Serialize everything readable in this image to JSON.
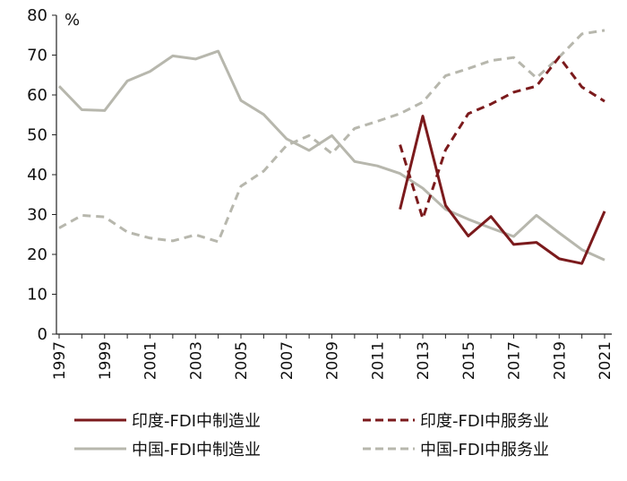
{
  "chart_data": {
    "type": "line",
    "unit_label": "%",
    "ylim": [
      0,
      80
    ],
    "y_ticks": [
      "0",
      "10",
      "20",
      "30",
      "40",
      "50",
      "60",
      "70",
      "80"
    ],
    "x_range": [
      1997,
      2021
    ],
    "x_tick_labels": [
      "1997",
      "1999",
      "2001",
      "2003",
      "2005",
      "2007",
      "2009",
      "2011",
      "2013",
      "2015",
      "2017",
      "2019",
      "2021"
    ],
    "series": [
      {
        "name": "印度-FDI中制造业",
        "color": "#7b1a1c",
        "dash": "solid",
        "x": [
          2012,
          2013,
          2014,
          2015,
          2016,
          2017,
          2018,
          2019,
          2020,
          2021
        ],
        "values": [
          31.3,
          54.7,
          32.3,
          24.6,
          29.5,
          22.5,
          23.0,
          18.9,
          17.7,
          30.8
        ]
      },
      {
        "name": "印度-FDI中服务业",
        "color": "#7b1a1c",
        "dash": "dashed",
        "x": [
          2012,
          2013,
          2014,
          2015,
          2016,
          2017,
          2018,
          2019,
          2020,
          2021
        ],
        "values": [
          47.5,
          29.0,
          46.2,
          55.3,
          57.7,
          60.7,
          62.2,
          69.5,
          62.0,
          58.4
        ]
      },
      {
        "name": "中国-FDI中制造业",
        "color": "#b7b7ad",
        "dash": "solid",
        "x": [
          1997,
          1998,
          1999,
          2000,
          2001,
          2002,
          2003,
          2004,
          2005,
          2006,
          2007,
          2008,
          2009,
          2010,
          2011,
          2012,
          2013,
          2014,
          2015,
          2016,
          2017,
          2018,
          2019,
          2020,
          2021
        ],
        "values": [
          62.2,
          56.3,
          56.1,
          63.5,
          65.9,
          69.8,
          69.0,
          71.0,
          58.6,
          55.1,
          49.0,
          46.1,
          49.8,
          43.3,
          42.2,
          40.3,
          36.6,
          31.3,
          28.8,
          26.6,
          24.5,
          29.8,
          25.4,
          21.2,
          18.6
        ]
      },
      {
        "name": "中国-FDI中服务业",
        "color": "#b7b7ad",
        "dash": "dashed",
        "x": [
          1997,
          1998,
          1999,
          2000,
          2001,
          2002,
          2003,
          2004,
          2005,
          2006,
          2007,
          2008,
          2009,
          2010,
          2011,
          2012,
          2013,
          2014,
          2015,
          2016,
          2017,
          2018,
          2019,
          2020,
          2021
        ],
        "values": [
          26.6,
          29.8,
          29.4,
          25.6,
          24.1,
          23.4,
          24.9,
          23.2,
          37.1,
          40.9,
          47.3,
          49.8,
          45.3,
          51.6,
          53.4,
          55.3,
          58.2,
          64.8,
          66.6,
          68.6,
          69.4,
          64.3,
          69.5,
          75.3,
          76.2
        ]
      }
    ],
    "legend": {
      "position": "bottom",
      "columns": 2
    }
  }
}
